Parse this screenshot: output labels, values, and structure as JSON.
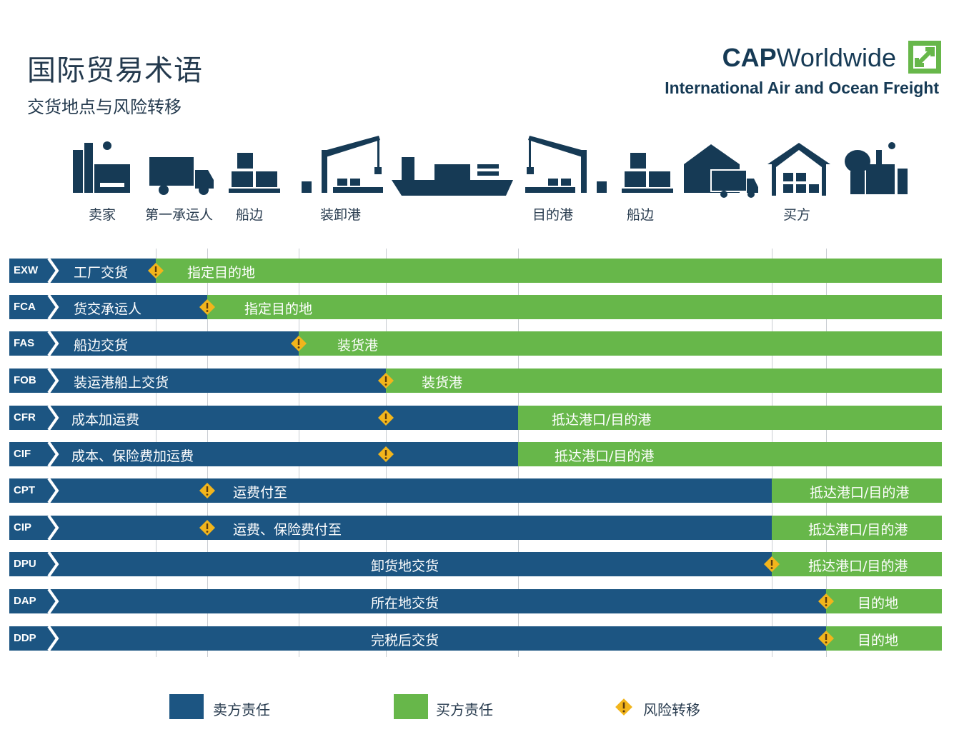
{
  "header": {
    "title": "国际贸易术语",
    "subtitle": "交货地点与风险转移"
  },
  "logo": {
    "name_bold": "CAP",
    "name_rest": "Worldwide",
    "tagline": "International Air and Ocean Freight",
    "color_navy": "#163a55",
    "color_green": "#67b74a"
  },
  "locations": [
    {
      "label": "卖家",
      "icon": "factory-icon"
    },
    {
      "label": "第一承运人",
      "icon": "truck-icon"
    },
    {
      "label": "船边",
      "icon": "pallet-boxes-icon"
    },
    {
      "label": "装卸港",
      "icon": "crane-icon"
    },
    {
      "label": "",
      "icon": "ship-icon"
    },
    {
      "label": "目的港",
      "icon": "crane-icon"
    },
    {
      "label": "船边",
      "icon": "pallet-boxes-icon"
    },
    {
      "label": "",
      "icon": "warehouse-truck-icon"
    },
    {
      "label": "买方",
      "icon": "warehouse-icon"
    },
    {
      "label": "",
      "icon": "plant-icon"
    }
  ],
  "terms": [
    {
      "code": "EXW",
      "seller": "工厂交货",
      "buyer": "指定目的地"
    },
    {
      "code": "FCA",
      "seller": "货交承运人",
      "buyer": "指定目的地"
    },
    {
      "code": "FAS",
      "seller": "船边交货",
      "buyer": "装货港"
    },
    {
      "code": "FOB",
      "seller": "装运港船上交货",
      "buyer": "装货港"
    },
    {
      "code": "CFR",
      "seller": "成本加运费",
      "buyer": "抵达港口/目的港"
    },
    {
      "code": "CIF",
      "seller": "成本、保险费加运费",
      "buyer": "抵达港口/目的港"
    },
    {
      "code": "CPT",
      "seller": "运费付至",
      "buyer": "抵达港口/目的港"
    },
    {
      "code": "CIP",
      "seller": "运费、保险费付至",
      "buyer": "抵达港口/目的港"
    },
    {
      "code": "DPU",
      "seller": "卸货地交货",
      "buyer": "抵达港口/目的港"
    },
    {
      "code": "DAP",
      "seller": "所在地交货",
      "buyer": "目的地"
    },
    {
      "code": "DDP",
      "seller": "完税后交货",
      "buyer": "目的地"
    }
  ],
  "legend": {
    "seller": "卖方责任",
    "buyer": "买方责任",
    "risk": "风险转移"
  },
  "colors": {
    "seller": "#1c5582",
    "buyer": "#67b74a",
    "risk": "#f2b51c",
    "icons": "#163a55"
  }
}
